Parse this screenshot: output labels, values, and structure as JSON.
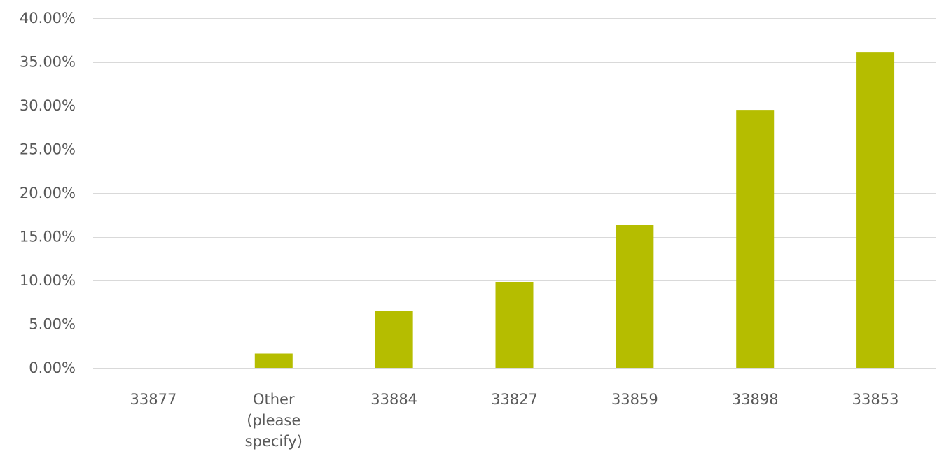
{
  "chart_data": {
    "type": "bar",
    "categories": [
      "33877",
      "Other (please specify)",
      "33884",
      "33827",
      "33859",
      "33898",
      "33853"
    ],
    "category_label_lines": [
      [
        "33877"
      ],
      [
        "Other",
        "(please",
        "specify)"
      ],
      [
        "33884"
      ],
      [
        "33827"
      ],
      [
        "33859"
      ],
      [
        "33898"
      ],
      [
        "33853"
      ]
    ],
    "values": [
      0.0,
      1.64,
      6.56,
      9.84,
      16.39,
      29.51,
      36.07
    ],
    "ylim": [
      0,
      40
    ],
    "yticks": [
      0,
      5,
      10,
      15,
      20,
      25,
      30,
      35,
      40
    ],
    "ytick_labels": [
      "0.00%",
      "5.00%",
      "10.00%",
      "15.00%",
      "20.00%",
      "25.00%",
      "30.00%",
      "35.00%",
      "40.00%"
    ],
    "grid": true,
    "legend": "none",
    "bar_color": "#b5bd00"
  }
}
